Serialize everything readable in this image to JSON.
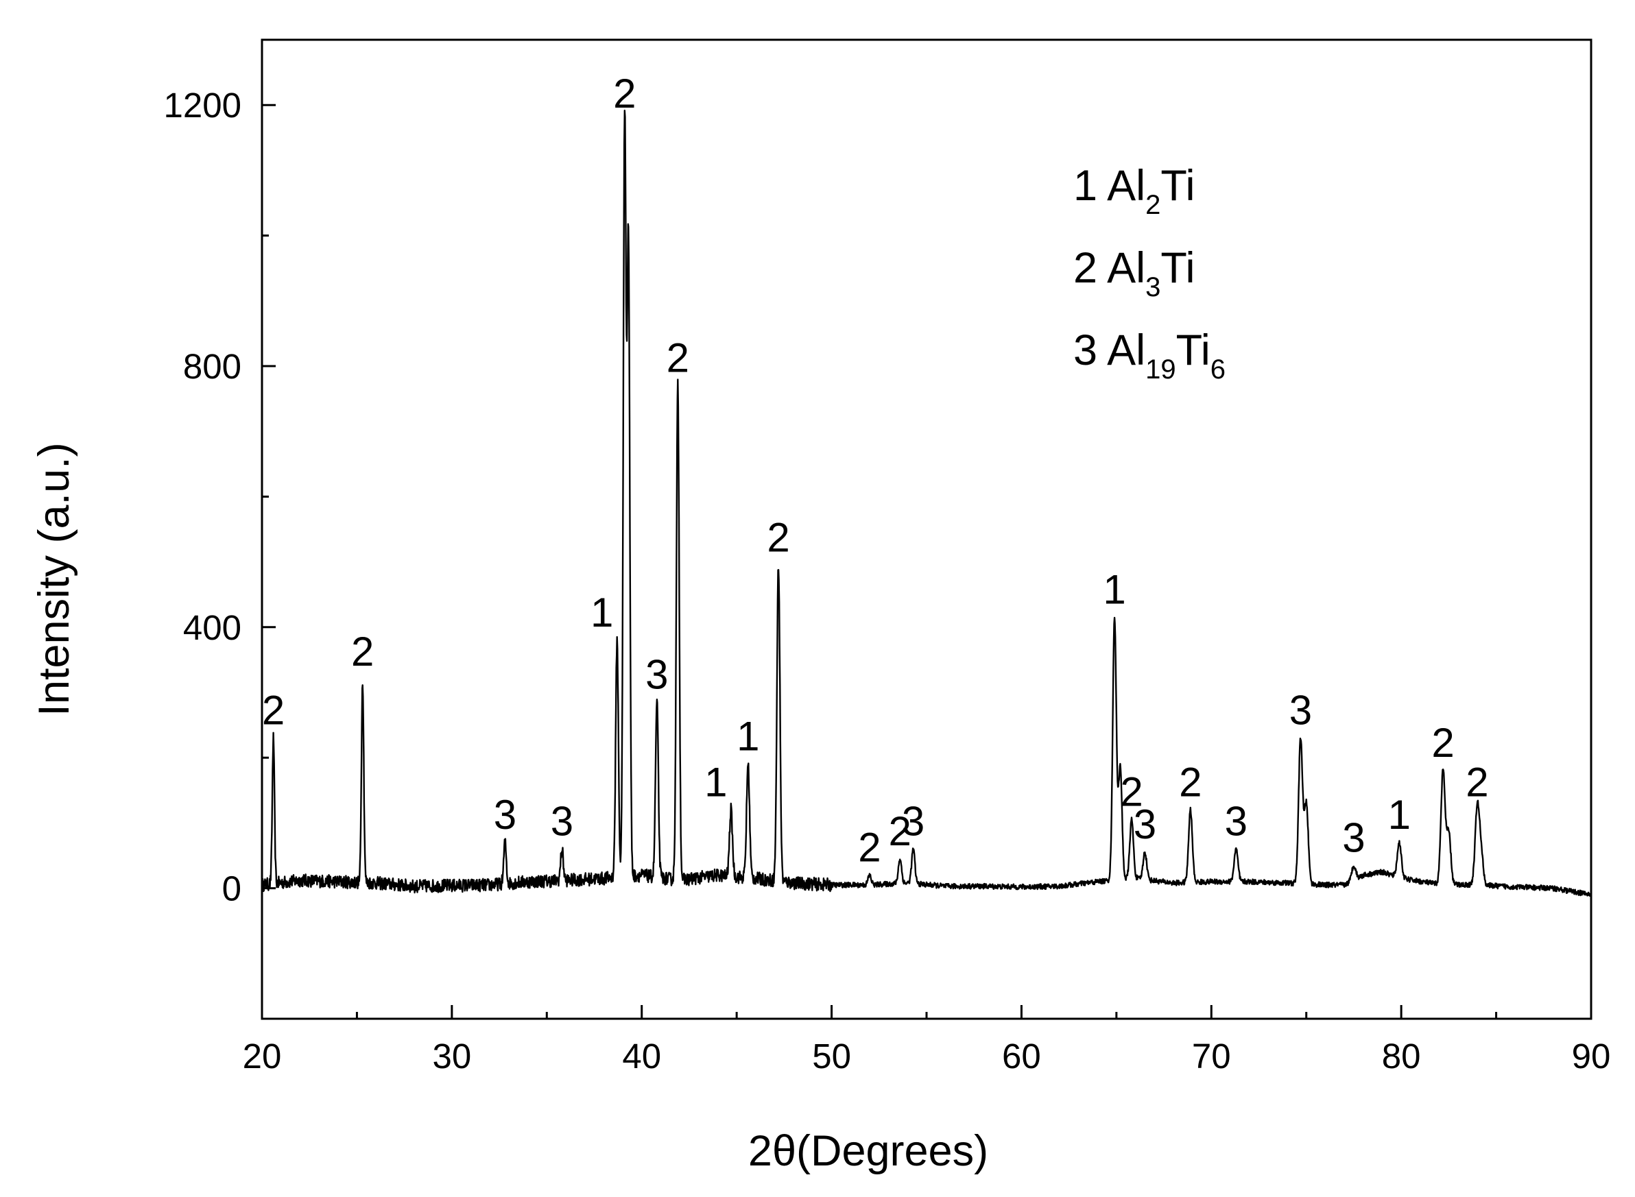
{
  "chart_data": {
    "type": "line",
    "xlabel": "2θ(Degrees)",
    "ylabel": "Intensity (a.u.)",
    "xlim": [
      20,
      90
    ],
    "ylim": [
      -200,
      1300
    ],
    "x_ticks": [
      20,
      30,
      40,
      50,
      60,
      70,
      80,
      90
    ],
    "x_tick_labels": [
      "20",
      "30",
      "40",
      "50",
      "60",
      "70",
      "80",
      "90"
    ],
    "y_ticks": [
      0,
      400,
      800,
      1200
    ],
    "y_tick_labels": [
      "0",
      "400",
      "800",
      "1200"
    ],
    "grid": false,
    "legend_position": "top-right",
    "legend": [
      {
        "number": "1",
        "base": "Al",
        "sub1": "2",
        "mid": "Ti",
        "sub2": ""
      },
      {
        "number": "2",
        "base": "Al",
        "sub1": "3",
        "mid": "Ti",
        "sub2": ""
      },
      {
        "number": "3",
        "base": "Al",
        "sub1": "19",
        "mid": "Ti",
        "sub2": "6"
      }
    ],
    "baseline": [
      [
        20,
        5
      ],
      [
        22,
        12
      ],
      [
        24,
        10
      ],
      [
        26,
        8
      ],
      [
        28,
        3
      ],
      [
        30,
        4
      ],
      [
        32,
        5
      ],
      [
        34,
        10
      ],
      [
        36,
        12
      ],
      [
        38,
        15
      ],
      [
        40,
        20
      ],
      [
        42,
        12
      ],
      [
        44,
        20
      ],
      [
        46,
        15
      ],
      [
        48,
        8
      ],
      [
        50,
        5
      ],
      [
        52,
        5
      ],
      [
        54,
        8
      ],
      [
        56,
        3
      ],
      [
        58,
        3
      ],
      [
        60,
        2
      ],
      [
        62,
        3
      ],
      [
        64,
        10
      ],
      [
        66,
        15
      ],
      [
        68,
        8
      ],
      [
        70,
        10
      ],
      [
        72,
        10
      ],
      [
        74,
        8
      ],
      [
        76,
        5
      ],
      [
        77,
        5
      ],
      [
        78,
        20
      ],
      [
        79,
        25
      ],
      [
        80,
        15
      ],
      [
        82,
        6
      ],
      [
        84,
        5
      ],
      [
        86,
        2
      ],
      [
        88,
        0
      ],
      [
        90,
        -10
      ]
    ],
    "peaks": [
      {
        "x": 20.6,
        "y": 230,
        "label": "2"
      },
      {
        "x": 25.3,
        "y": 320,
        "label": "2"
      },
      {
        "x": 32.8,
        "y": 70,
        "label": "3"
      },
      {
        "x": 35.8,
        "y": 60,
        "label": "3"
      },
      {
        "x": 38.7,
        "y": 380,
        "label": "1"
      },
      {
        "x": 39.1,
        "y": 1175,
        "label": "2"
      },
      {
        "x": 39.3,
        "y": 990,
        "label": ""
      },
      {
        "x": 40.8,
        "y": 285,
        "label": "3"
      },
      {
        "x": 41.9,
        "y": 770,
        "label": "2"
      },
      {
        "x": 44.7,
        "y": 120,
        "label": "1"
      },
      {
        "x": 45.6,
        "y": 190,
        "label": "1"
      },
      {
        "x": 47.2,
        "y": 495,
        "label": "2"
      },
      {
        "x": 52.0,
        "y": 20,
        "label": "2"
      },
      {
        "x": 53.6,
        "y": 45,
        "label": "2"
      },
      {
        "x": 54.3,
        "y": 60,
        "label": "3"
      },
      {
        "x": 64.9,
        "y": 415,
        "label": "1"
      },
      {
        "x": 65.2,
        "y": 185,
        "label": ""
      },
      {
        "x": 65.8,
        "y": 105,
        "label": "2"
      },
      {
        "x": 66.5,
        "y": 55,
        "label": "3"
      },
      {
        "x": 68.9,
        "y": 120,
        "label": "2"
      },
      {
        "x": 71.3,
        "y": 60,
        "label": "3"
      },
      {
        "x": 74.7,
        "y": 230,
        "label": "3"
      },
      {
        "x": 75.0,
        "y": 130,
        "label": ""
      },
      {
        "x": 77.5,
        "y": 35,
        "label": "3"
      },
      {
        "x": 79.9,
        "y": 70,
        "label": "1"
      },
      {
        "x": 82.2,
        "y": 180,
        "label": "2"
      },
      {
        "x": 82.5,
        "y": 85,
        "label": ""
      },
      {
        "x": 84.0,
        "y": 120,
        "label": "2"
      },
      {
        "x": 84.2,
        "y": 55,
        "label": ""
      }
    ]
  }
}
